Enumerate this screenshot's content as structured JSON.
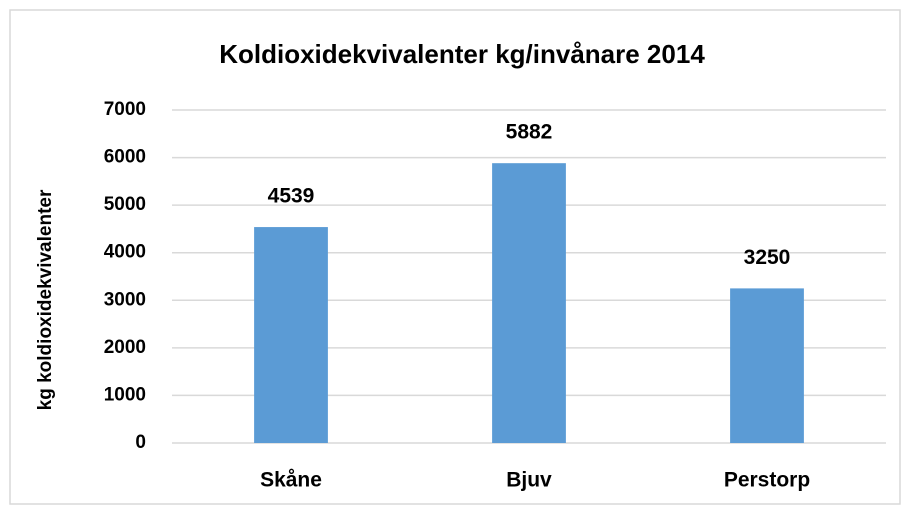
{
  "chart_data": {
    "type": "bar",
    "title": "Koldioxidekvivalenter kg/invånare 2014",
    "y_label": "kg koldioxidekvivalenter",
    "categories": [
      "Skåne",
      "Bjuv",
      "Perstorp"
    ],
    "values": [
      4539,
      5882,
      3250
    ],
    "color": "#5b9bd5",
    "ylim": [
      0,
      7000
    ],
    "yticks": [
      0,
      1000,
      2000,
      3000,
      4000,
      5000,
      6000,
      7000
    ],
    "grid": true
  }
}
